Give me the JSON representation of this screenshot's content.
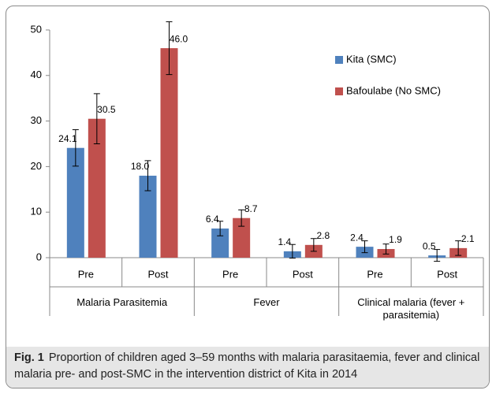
{
  "chart_data": {
    "type": "bar",
    "categories": [
      "Pre",
      "Post",
      "Pre",
      "Post",
      "Pre",
      "Post"
    ],
    "groups": [
      "Malaria Parasitemia",
      "Fever",
      "Clinical malaria (fever + parasitemia)"
    ],
    "series": [
      {
        "name": "Kita (SMC)",
        "color": "#4f81bd",
        "values": [
          24.1,
          18.0,
          6.4,
          1.4,
          2.4,
          0.5
        ],
        "value_labels": [
          "24.1",
          "18.0",
          "6.4",
          "1.4",
          "2.4",
          "0.5"
        ],
        "errors": [
          4,
          3.3,
          1.6,
          1.5,
          1.3,
          1.3
        ]
      },
      {
        "name": "Bafoulabe (No SMC)",
        "color": "#c0504d",
        "values": [
          30.5,
          46.0,
          8.7,
          2.8,
          1.9,
          2.1
        ],
        "value_labels": [
          "30.5",
          "46.0",
          "8.7",
          "2.8",
          "1.9",
          "2.1"
        ],
        "errors": [
          5.5,
          5.8,
          1.8,
          1.4,
          1.1,
          1.6
        ]
      }
    ],
    "ylim": [
      0,
      50
    ],
    "yticks": [
      0,
      10,
      20,
      30,
      40,
      50
    ],
    "grid": false,
    "legend": "top-right"
  },
  "caption": {
    "label": "Fig. 1",
    "text": "Proportion of children aged 3–59 months with malaria parasitaemia, fever and clinical malaria pre- and post-SMC in the intervention district of Kita in 2014"
  }
}
